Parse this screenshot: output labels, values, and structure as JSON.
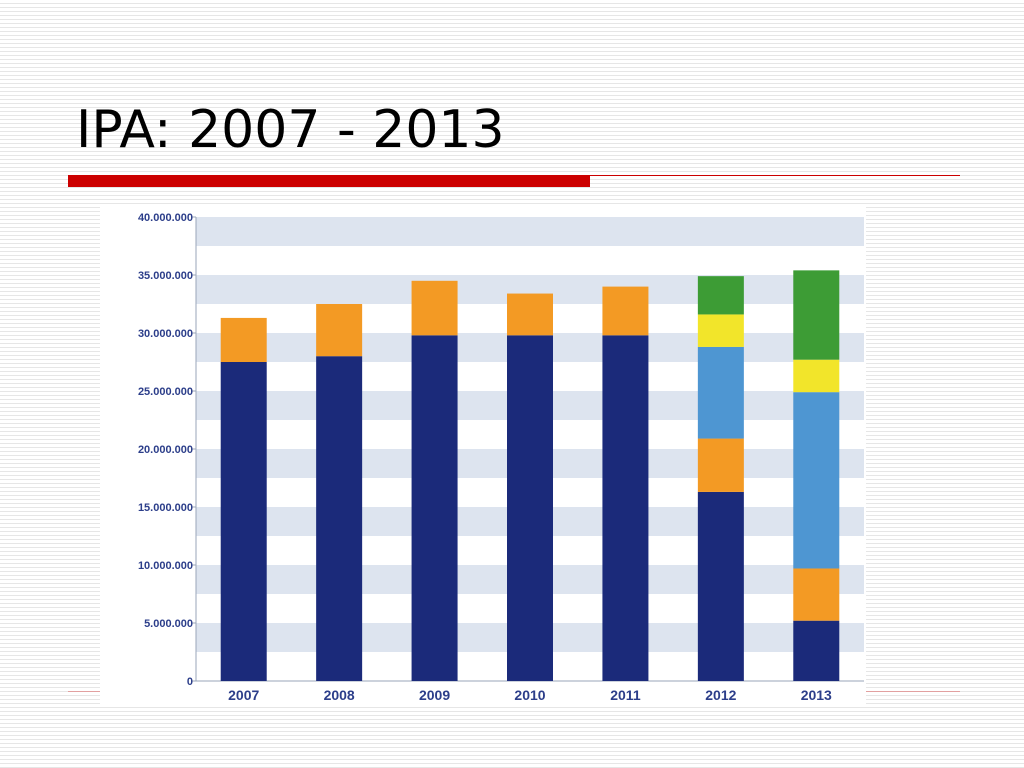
{
  "slide": {
    "title": "IPA: 2007 - 2013"
  },
  "colors": {
    "accent_rule": "#cc0000",
    "band": "#dde4ef",
    "axis": "#9aa6b8",
    "tick_label": "#2c3e8a"
  },
  "chart_data": {
    "type": "bar",
    "stacked": true,
    "categories": [
      "2007",
      "2008",
      "2009",
      "2010",
      "2011",
      "2012",
      "2013"
    ],
    "series": [
      {
        "color": "#1b2a7a",
        "values": [
          27500000,
          28000000,
          29800000,
          29800000,
          29800000,
          16300000,
          5200000
        ]
      },
      {
        "color": "#f39a24",
        "values": [
          3800000,
          4500000,
          4700000,
          3600000,
          4200000,
          4600000,
          4500000
        ]
      },
      {
        "color": "#4e96d2",
        "values": [
          0,
          0,
          0,
          0,
          0,
          7900000,
          15200000
        ]
      },
      {
        "color": "#f2e52a",
        "values": [
          0,
          0,
          0,
          0,
          0,
          2800000,
          2800000
        ]
      },
      {
        "color": "#3d9c35",
        "values": [
          0,
          0,
          0,
          0,
          0,
          3300000,
          7700000
        ]
      }
    ],
    "ylim": [
      0,
      40000000
    ],
    "yticks": [
      0,
      5000000,
      10000000,
      15000000,
      20000000,
      25000000,
      30000000,
      35000000,
      40000000
    ],
    "ytick_labels": [
      "0",
      "5.000.000",
      "10.000.000",
      "15.000.000",
      "20.000.000",
      "25.000.000",
      "30.000.000",
      "35.000.000",
      "40.000.000"
    ],
    "grid": "alternating horizontal bands",
    "legend": "none"
  }
}
